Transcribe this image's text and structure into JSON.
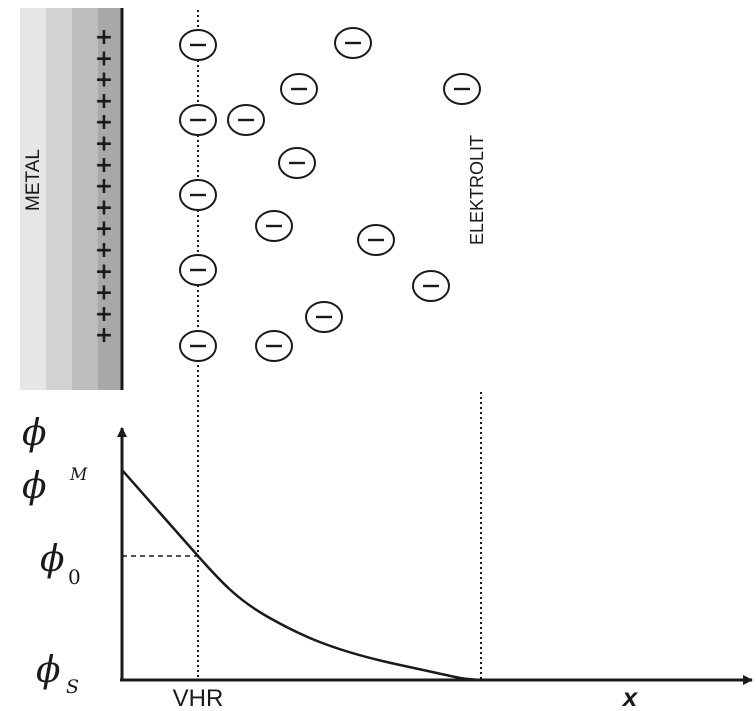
{
  "labels": {
    "metal": "METAL",
    "electrolyte": "ELEKTROLIT",
    "vhr": "VHR",
    "x_axis": "x",
    "phi": "ϕ",
    "phi_M_base": "ϕ",
    "phi_M_sup": "M",
    "phi_0_base": "ϕ",
    "phi_0_sub": "0",
    "phi_S_base": "ϕ",
    "phi_S_sub": "S"
  },
  "symbols": {
    "positive_charge": "+",
    "negative_charge": "−"
  },
  "colors": {
    "ink": "#1a1a1a",
    "metal_shades": [
      "#e6e6e6",
      "#d2d2d2",
      "#bdbdbd",
      "#a8a8a8"
    ]
  }
}
